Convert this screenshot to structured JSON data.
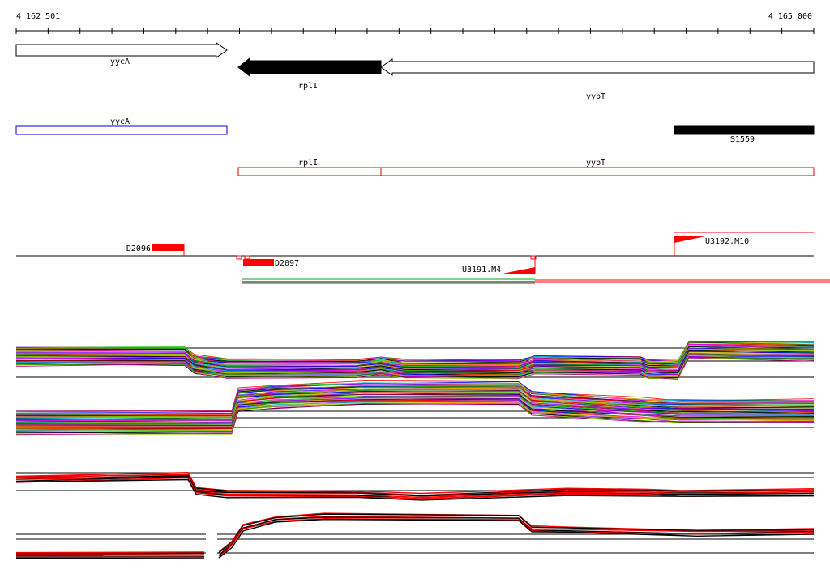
{
  "ruler": {
    "start_label": "4 162 501",
    "end_label": "4 165 000"
  },
  "genes": {
    "yycA": "yycA",
    "rplI": "rplI",
    "yybT": "yybT"
  },
  "annotations": {
    "yycA": "yycA",
    "S1559": "S1559",
    "rplI": "rplI",
    "yybT": "yybT"
  },
  "features": {
    "D2096": "D2096",
    "D2097": "D2097",
    "U3191": "U3191.M4",
    "U3192": "U3192.M10"
  },
  "colors": {
    "gene_outline": "#000000",
    "gene_fill_reverse": "#000000",
    "annotation_blue": "#0000cc",
    "annotation_red": "#dd0000",
    "feature_red": "#ff0000",
    "track_lines": "#000000",
    "trace_palette": [
      "#ff0000",
      "#00bb00",
      "#0000ff",
      "#ff00ff",
      "#00cccc",
      "#cccc00",
      "#ff8800",
      "#8800ff",
      "#008800",
      "#000000",
      "#88cc00",
      "#cc0088"
    ]
  }
}
